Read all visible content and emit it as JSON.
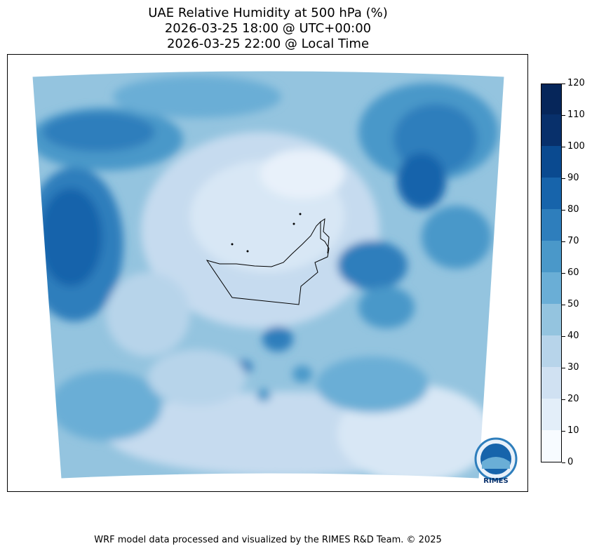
{
  "title": {
    "line1": "UAE Relative Humidity at 500 hPa (%)",
    "line2": "2026-03-25 18:00 @ UTC+00:00",
    "line3": "2026-03-25 22:00 @ Local Time"
  },
  "colorbar": {
    "ticks": [
      "0",
      "10",
      "20",
      "30",
      "40",
      "50",
      "60",
      "70",
      "80",
      "90",
      "100",
      "110",
      "120"
    ],
    "colors": [
      "#f7fbff",
      "#e3eef9",
      "#d0e1f2",
      "#b7d4ea",
      "#94c4df",
      "#6aaed6",
      "#4a98c9",
      "#2e7ebc",
      "#1764ab",
      "#0a4a90",
      "#08306b",
      "#06265a"
    ]
  },
  "logo": {
    "text": "RIMES"
  },
  "footer": "WRF model data processed and visualized by the RIMES R&D Team. © 2025"
}
